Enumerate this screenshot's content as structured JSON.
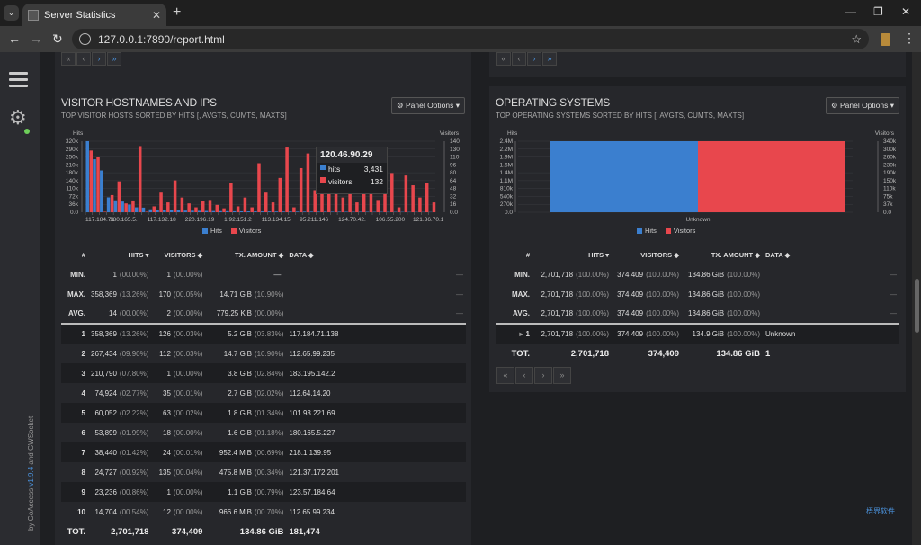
{
  "browser": {
    "tab_title": "Server Statistics",
    "url": "127.0.0.1:7890/report.html",
    "menu_glyph": "⌄",
    "new_tab_glyph": "+",
    "close_glyph": "✕",
    "minimize_glyph": "—",
    "restore_glyph": "❐",
    "back_glyph": "←",
    "forward_glyph": "→",
    "reload_glyph": "↻",
    "star_glyph": "☆",
    "more_glyph": "⋮"
  },
  "sidebar": {
    "byline_prefix": "by GoAccess ",
    "byline_version": "v1.9.4",
    "byline_suffix": " and GWSocket"
  },
  "pager": [
    "«",
    "‹",
    "›",
    "»"
  ],
  "hosts_panel": {
    "title": "VISITOR HOSTNAMES AND IPS",
    "subtitle": "TOP VISITOR HOSTS SORTED BY HITS [, AVGTS, CUMTS, MAXTS]",
    "options_label": "⚙ Panel Options ▾",
    "left_axis_title": "Hits",
    "right_axis_title": "Visitors",
    "legend_hits": "Hits",
    "legend_visitors": "Visitors",
    "tooltip": {
      "title": "120.46.90.29",
      "hits_label": "hits",
      "hits_value": "3,431",
      "visitors_label": "visitors",
      "visitors_value": "132"
    },
    "columns": [
      "#",
      "HITS ▾",
      "VISITORS ◆",
      "TX. AMOUNT ◆",
      "DATA ◆"
    ],
    "summary": [
      {
        "label": "MIN.",
        "hits": "1",
        "hits_pct": "(00.00%)",
        "visitors": "1",
        "visitors_pct": "(00.00%)",
        "tx": "—",
        "tx_pct": "",
        "dash": "—"
      },
      {
        "label": "MAX.",
        "hits": "358,369",
        "hits_pct": "(13.26%)",
        "visitors": "170",
        "visitors_pct": "(00.05%)",
        "tx": "14.71 GiB",
        "tx_pct": "(10.90%)",
        "dash": "—"
      },
      {
        "label": "AVG.",
        "hits": "14",
        "hits_pct": "(00.00%)",
        "visitors": "2",
        "visitors_pct": "(00.00%)",
        "tx": "779.25 KiB",
        "tx_pct": "(00.00%)",
        "dash": "—"
      }
    ],
    "rows": [
      {
        "n": "1",
        "hits": "358,369",
        "hits_pct": "(13.26%)",
        "visitors": "126",
        "visitors_pct": "(00.03%)",
        "tx": "5.2 GiB",
        "tx_pct": "(03.83%)",
        "data": "117.184.71.138"
      },
      {
        "n": "2",
        "hits": "267,434",
        "hits_pct": "(09.90%)",
        "visitors": "112",
        "visitors_pct": "(00.03%)",
        "tx": "14.7 GiB",
        "tx_pct": "(10.90%)",
        "data": "112.65.99.235"
      },
      {
        "n": "3",
        "hits": "210,790",
        "hits_pct": "(07.80%)",
        "visitors": "1",
        "visitors_pct": "(00.00%)",
        "tx": "3.8 GiB",
        "tx_pct": "(02.84%)",
        "data": "183.195.142.2"
      },
      {
        "n": "4",
        "hits": "74,924",
        "hits_pct": "(02.77%)",
        "visitors": "35",
        "visitors_pct": "(00.01%)",
        "tx": "2.7 GiB",
        "tx_pct": "(02.02%)",
        "data": "112.64.14.20"
      },
      {
        "n": "5",
        "hits": "60,052",
        "hits_pct": "(02.22%)",
        "visitors": "63",
        "visitors_pct": "(00.02%)",
        "tx": "1.8 GiB",
        "tx_pct": "(01.34%)",
        "data": "101.93.221.69"
      },
      {
        "n": "6",
        "hits": "53,899",
        "hits_pct": "(01.99%)",
        "visitors": "18",
        "visitors_pct": "(00.00%)",
        "tx": "1.6 GiB",
        "tx_pct": "(01.18%)",
        "data": "180.165.5.227"
      },
      {
        "n": "7",
        "hits": "38,440",
        "hits_pct": "(01.42%)",
        "visitors": "24",
        "visitors_pct": "(00.01%)",
        "tx": "952.4 MiB",
        "tx_pct": "(00.69%)",
        "data": "218.1.139.95"
      },
      {
        "n": "8",
        "hits": "24,727",
        "hits_pct": "(00.92%)",
        "visitors": "135",
        "visitors_pct": "(00.04%)",
        "tx": "475.8 MiB",
        "tx_pct": "(00.34%)",
        "data": "121.37.172.201"
      },
      {
        "n": "9",
        "hits": "23,236",
        "hits_pct": "(00.86%)",
        "visitors": "1",
        "visitors_pct": "(00.00%)",
        "tx": "1.1 GiB",
        "tx_pct": "(00.79%)",
        "data": "123.57.184.64"
      },
      {
        "n": "10",
        "hits": "14,704",
        "hits_pct": "(00.54%)",
        "visitors": "12",
        "visitors_pct": "(00.00%)",
        "tx": "966.6 MiB",
        "tx_pct": "(00.70%)",
        "data": "112.65.99.234"
      }
    ],
    "total": {
      "label": "TOT.",
      "hits": "2,701,718",
      "visitors": "374,409",
      "tx": "134.86 GiB",
      "data": "181,474"
    }
  },
  "os_panel": {
    "title": "OPERATING SYSTEMS",
    "subtitle": "TOP OPERATING SYSTEMS SORTED BY HITS [, AVGTS, CUMTS, MAXTS]",
    "options_label": "⚙ Panel Options ▾",
    "left_axis_title": "Hits",
    "right_axis_title": "Visitors",
    "legend_hits": "Hits",
    "legend_visitors": "Visitors",
    "columns": [
      "#",
      "HITS ▾",
      "VISITORS ◆",
      "TX. AMOUNT ◆",
      "DATA ◆"
    ],
    "summary": [
      {
        "label": "MIN.",
        "hits": "2,701,718",
        "hits_pct": "(100.00%)",
        "visitors": "374,409",
        "visitors_pct": "(100.00%)",
        "tx": "134.86 GiB",
        "tx_pct": "(100.00%)",
        "dash": "—"
      },
      {
        "label": "MAX.",
        "hits": "2,701,718",
        "hits_pct": "(100.00%)",
        "visitors": "374,409",
        "visitors_pct": "(100.00%)",
        "tx": "134.86 GiB",
        "tx_pct": "(100.00%)",
        "dash": "—"
      },
      {
        "label": "AVG.",
        "hits": "2,701,718",
        "hits_pct": "(100.00%)",
        "visitors": "374,409",
        "visitors_pct": "(100.00%)",
        "tx": "134.86 GiB",
        "tx_pct": "(100.00%)",
        "dash": "—"
      }
    ],
    "rows": [
      {
        "expand": "▸",
        "n": "1",
        "hits": "2,701,718",
        "hits_pct": "(100.00%)",
        "visitors": "374,409",
        "visitors_pct": "(100.00%)",
        "tx": "134.9 GiB",
        "tx_pct": "(100.00%)",
        "data": "Unknown"
      }
    ],
    "total": {
      "label": "TOT.",
      "hits": "2,701,718",
      "visitors": "374,409",
      "tx": "134.86 GiB",
      "data": "1"
    }
  },
  "watermark": "梧界软件",
  "colors": {
    "hits": "#3b7fcf",
    "visitors": "#e8474d"
  },
  "chart_data": [
    {
      "type": "bar",
      "panel": "VISITOR HOSTNAMES AND IPS",
      "x_tick_labels": [
        "117.184.71",
        "180.165.5.",
        "117.132.18",
        "220.196.19",
        "1.92.151.2",
        "113.134.15",
        "95.211.146",
        "124.70.42.",
        "106.55.200",
        "121.36.70.1"
      ],
      "left_axis_ticks": [
        "320k",
        "290k",
        "250k",
        "210k",
        "180k",
        "140k",
        "110k",
        "72k",
        "36k",
        "0.0"
      ],
      "right_axis_ticks": [
        "140",
        "130",
        "110",
        "96",
        "80",
        "64",
        "48",
        "32",
        "16",
        "0.0"
      ],
      "ylim_hits": [
        0,
        358369
      ],
      "ylim_visitors": [
        0,
        145
      ],
      "series": [
        {
          "name": "Hits",
          "values": [
            358369,
            267434,
            210790,
            74924,
            60052,
            53899,
            38440,
            24727,
            23236,
            14704,
            12000,
            10500,
            9800,
            9000,
            8200,
            7600,
            7000,
            6500,
            6100,
            5700,
            5300,
            5000,
            4700,
            4400,
            4200,
            4000,
            3800,
            3600,
            3431,
            3300,
            3100,
            3000,
            2900,
            2800,
            2700,
            2600,
            2500,
            2400,
            2300,
            2200,
            2100,
            2000,
            1900,
            1800,
            1700,
            1600,
            1500,
            1400,
            1300,
            1200
          ]
        },
        {
          "name": "Visitors",
          "values": [
            126,
            112,
            1,
            35,
            63,
            18,
            24,
            135,
            1,
            12,
            40,
            20,
            65,
            30,
            18,
            10,
            22,
            25,
            15,
            8,
            60,
            12,
            30,
            10,
            100,
            40,
            20,
            70,
            132,
            10,
            90,
            120,
            45,
            100,
            130,
            60,
            30,
            85,
            20,
            70,
            110,
            25,
            40,
            80,
            10,
            75,
            55,
            30,
            60,
            20
          ]
        }
      ]
    },
    {
      "type": "bar",
      "panel": "OPERATING SYSTEMS",
      "categories": [
        "Unknown"
      ],
      "left_axis_ticks": [
        "2.4M",
        "2.2M",
        "1.9M",
        "1.6M",
        "1.4M",
        "1.1M",
        "810k",
        "540k",
        "270k",
        "0.0"
      ],
      "right_axis_ticks": [
        "340k",
        "300k",
        "260k",
        "230k",
        "190k",
        "150k",
        "110k",
        "75k",
        "37k",
        "0.0"
      ],
      "series": [
        {
          "name": "Hits",
          "values": [
            2701718
          ]
        },
        {
          "name": "Visitors",
          "values": [
            374409
          ]
        }
      ]
    }
  ]
}
